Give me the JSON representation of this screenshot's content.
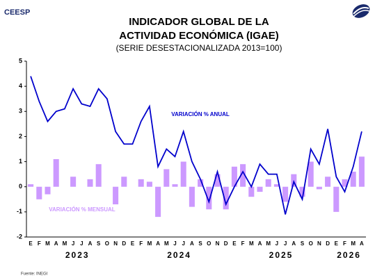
{
  "brand": "CEESP",
  "source": "Fuente: INEGI",
  "chart_data": {
    "type": "bar-line",
    "title": "INDICADOR GLOBAL DE LA",
    "title_line2": "ACTIVIDAD ECONÓMICA (IGAE)",
    "subtitle": "(SERIE DESESTACIONALIZADA 2013=100)",
    "categories": [
      "E",
      "F",
      "M",
      "A",
      "M",
      "J",
      "J",
      "A",
      "S",
      "O",
      "N",
      "D",
      "E",
      "F",
      "M",
      "A",
      "M",
      "J",
      "J",
      "A",
      "S",
      "O",
      "N",
      "D",
      "E",
      "F",
      "M",
      "A",
      "M",
      "J",
      "J",
      "A",
      "S",
      "O",
      "N",
      "D",
      "E",
      "F",
      "M",
      "A"
    ],
    "years": [
      "2023",
      "2024",
      "2025",
      "2026"
    ],
    "ylim": [
      -2,
      5
    ],
    "yticks": [
      -2,
      -1,
      0,
      1,
      2,
      3,
      4,
      5
    ],
    "grid": false,
    "series": [
      {
        "name": "VARIACIÓN % MENSUAL",
        "kind": "bar",
        "color": "#cc99ff",
        "values": [
          0.1,
          -0.5,
          -0.3,
          1.1,
          0.0,
          0.4,
          0.0,
          0.3,
          0.9,
          0.0,
          -0.7,
          0.4,
          0.0,
          0.3,
          0.2,
          -1.2,
          0.7,
          0.1,
          1.0,
          -0.8,
          0.3,
          -0.9,
          0.5,
          -0.9,
          0.8,
          0.9,
          -0.4,
          -0.2,
          0.3,
          0.1,
          -0.6,
          0.5,
          -0.4,
          1.0,
          -0.1,
          0.4,
          -1.0,
          0.3,
          0.6,
          1.2
        ]
      },
      {
        "name": "VARIACIÓN % ANUAL",
        "kind": "line",
        "color": "#0000cc",
        "values": [
          4.4,
          3.4,
          2.6,
          3.0,
          3.1,
          3.9,
          3.3,
          3.2,
          3.9,
          3.5,
          2.2,
          1.7,
          1.7,
          2.6,
          3.2,
          0.8,
          1.5,
          1.2,
          2.2,
          1.0,
          0.3,
          -0.6,
          0.6,
          -0.7,
          0.0,
          0.6,
          0.0,
          0.9,
          0.5,
          0.5,
          -1.1,
          0.2,
          -0.5,
          1.5,
          0.9,
          2.3,
          0.4,
          -0.2,
          0.8,
          2.2
        ]
      }
    ]
  }
}
